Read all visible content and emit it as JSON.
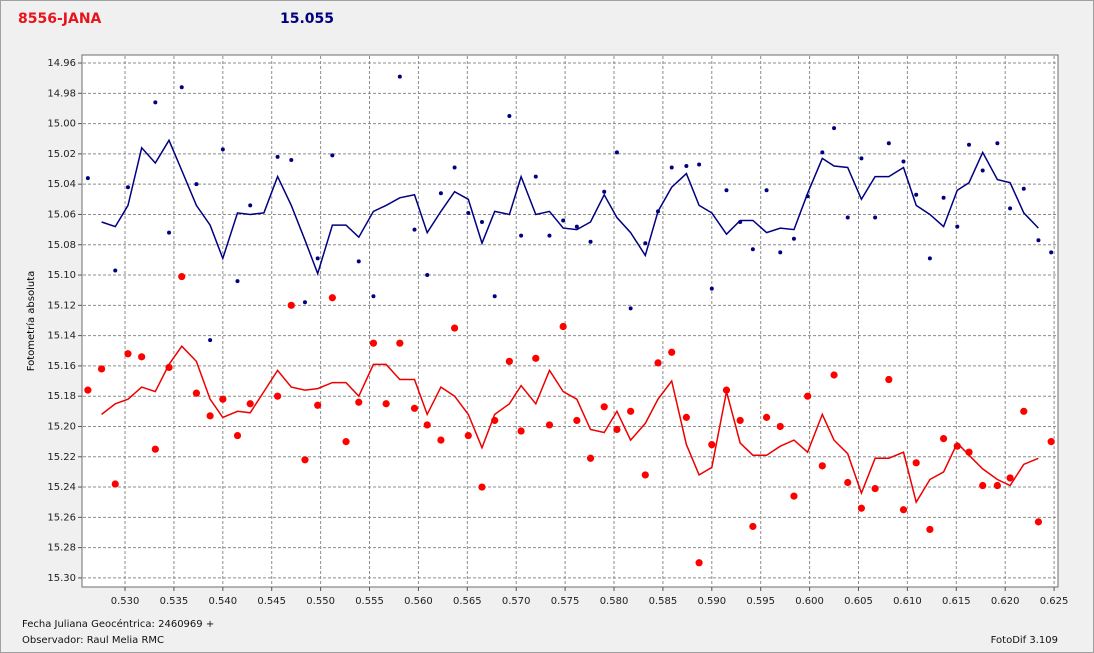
{
  "chart_data": {
    "type": "scatter",
    "title": "8556-JANA",
    "title_color": "#e8141c",
    "subtitle": "15.055",
    "subtitle_color": "#000080",
    "y_label": "Fotometría absoluta",
    "footer": [
      "Fecha Juliana Geocéntrica: 2460969 +",
      "Observador: Raul Melia RMC"
    ],
    "software": "FotoDif 3.109",
    "grid": true,
    "y_reversed": true,
    "xlim": [
      0.5256,
      0.6254
    ],
    "ylim": [
      14.9547,
      15.306
    ],
    "xticks": [
      {
        "value": 0.53,
        "label": "0.530"
      },
      0.535,
      {
        "value": 0.54,
        "label": "0.540"
      },
      0.545,
      {
        "value": 0.55,
        "label": "0.550"
      },
      0.555,
      {
        "value": 0.56,
        "label": "0.560"
      },
      0.565,
      {
        "value": 0.57,
        "label": "0.570"
      },
      0.575,
      {
        "value": 0.58,
        "label": "0.580"
      },
      0.585,
      {
        "value": 0.59,
        "label": "0.590"
      },
      0.595,
      {
        "value": 0.6,
        "label": "0.600"
      },
      0.605,
      {
        "value": 0.61,
        "label": "0.610"
      },
      0.615,
      {
        "value": 0.62,
        "label": "0.620"
      },
      0.625
    ],
    "yticks": [
      14.96,
      14.98,
      {
        "value": 15,
        "label": "15.00"
      },
      15.02,
      15.04,
      15.06,
      15.08,
      {
        "value": 15.1,
        "label": "15.10"
      },
      15.12,
      15.14,
      15.16,
      15.18,
      {
        "value": 15.2,
        "label": "15.20"
      },
      15.22,
      15.24,
      15.26,
      15.28,
      {
        "value": 15.3,
        "label": "15.30"
      }
    ],
    "x": [
      0.5262,
      0.5276,
      0.529,
      0.5303,
      0.5317,
      0.5331,
      0.5345,
      0.5358,
      0.5373,
      0.5387,
      0.54,
      0.5415,
      0.5428,
      0.5442,
      0.5456,
      0.547,
      0.5484,
      0.5497,
      0.5512,
      0.5526,
      0.5539,
      0.5554,
      0.5567,
      0.5581,
      0.5596,
      0.5609,
      0.5623,
      0.5637,
      0.5651,
      0.5665,
      0.5678,
      0.5693,
      0.5705,
      0.572,
      0.5734,
      0.5748,
      0.5762,
      0.5776,
      0.579,
      0.5803,
      0.5817,
      0.5832,
      0.5845,
      0.5859,
      0.5874,
      0.5887,
      0.59,
      0.5915,
      0.5929,
      0.5942,
      0.5956,
      0.597,
      0.5984,
      0.5998,
      0.6013,
      0.6025,
      0.6039,
      0.6053,
      0.6067,
      0.6081,
      0.6096,
      0.6109,
      0.6123,
      0.6137,
      0.6151,
      0.6163,
      0.6177,
      0.6192,
      0.6205,
      0.6219,
      0.6234,
      0.6247
    ],
    "series": [
      {
        "style": "markers",
        "color": "#000080",
        "values": [
          15.036,
          null,
          15.097,
          15.042,
          null,
          14.986,
          15.072,
          14.976,
          15.04,
          15.143,
          15.017,
          15.104,
          15.054,
          null,
          15.022,
          15.024,
          15.118,
          15.089,
          15.021,
          null,
          15.091,
          15.114,
          null,
          14.969,
          15.07,
          15.1,
          15.046,
          15.029,
          15.059,
          15.065,
          15.114,
          14.995,
          15.074,
          15.035,
          15.074,
          15.064,
          15.068,
          15.078,
          15.045,
          15.019,
          15.122,
          15.079,
          15.058,
          15.029,
          15.028,
          15.027,
          15.109,
          15.044,
          15.065,
          15.083,
          15.044,
          15.085,
          15.076,
          15.048,
          15.019,
          15.003,
          15.062,
          15.023,
          15.062,
          15.013,
          15.025,
          15.047,
          15.089,
          15.049,
          15.068,
          15.014,
          15.031,
          15.013,
          15.056,
          15.043,
          15.077,
          15.085
        ]
      },
      {
        "style": "line",
        "color": "#000080",
        "values": [
          null,
          15.065,
          15.068,
          15.054,
          15.016,
          15.026,
          15.011,
          15.031,
          15.054,
          15.067,
          15.089,
          15.059,
          15.06,
          15.059,
          15.035,
          15.054,
          15.077,
          15.099,
          15.067,
          15.067,
          15.075,
          15.058,
          15.054,
          15.049,
          15.047,
          15.072,
          15.058,
          15.045,
          15.05,
          15.079,
          15.058,
          15.06,
          15.035,
          15.06,
          15.058,
          15.069,
          15.07,
          15.065,
          15.047,
          15.062,
          15.072,
          15.087,
          15.058,
          15.042,
          15.033,
          15.054,
          15.059,
          15.073,
          15.064,
          15.064,
          15.072,
          15.069,
          15.07,
          15.046,
          15.023,
          15.028,
          15.029,
          15.05,
          15.035,
          15.035,
          15.029,
          15.054,
          15.06,
          15.068,
          15.044,
          15.039,
          15.019,
          15.037,
          15.039,
          15.059,
          15.069,
          null
        ]
      },
      {
        "style": "markers",
        "color": "#ff0000",
        "values": [
          15.176,
          15.162,
          15.238,
          15.152,
          15.154,
          15.215,
          15.161,
          15.101,
          15.178,
          15.193,
          15.182,
          15.206,
          15.185,
          null,
          15.18,
          15.12,
          15.222,
          15.186,
          15.115,
          15.21,
          15.184,
          15.145,
          15.185,
          15.145,
          15.188,
          15.199,
          15.209,
          15.135,
          15.206,
          15.24,
          15.196,
          15.157,
          15.203,
          15.155,
          15.199,
          15.134,
          15.196,
          15.221,
          15.187,
          15.202,
          15.19,
          15.232,
          15.158,
          15.151,
          15.194,
          15.29,
          15.212,
          15.176,
          15.196,
          15.266,
          15.194,
          15.2,
          15.246,
          15.18,
          15.226,
          15.166,
          15.237,
          15.254,
          15.241,
          15.169,
          15.255,
          15.224,
          15.268,
          15.208,
          15.213,
          15.217,
          15.239,
          15.239,
          15.234,
          15.19,
          15.263,
          15.21
        ]
      },
      {
        "style": "line",
        "color": "#ee0000",
        "values": [
          null,
          15.192,
          15.185,
          15.182,
          15.174,
          15.177,
          15.159,
          15.147,
          15.157,
          15.182,
          15.194,
          15.19,
          15.191,
          15.177,
          15.163,
          15.174,
          15.176,
          15.175,
          15.171,
          15.171,
          15.18,
          15.159,
          15.159,
          15.169,
          15.169,
          15.192,
          15.174,
          15.18,
          15.192,
          15.214,
          15.192,
          15.185,
          15.173,
          15.185,
          15.163,
          15.177,
          15.182,
          15.202,
          15.204,
          15.19,
          15.209,
          15.198,
          15.182,
          15.17,
          15.212,
          15.232,
          15.227,
          15.177,
          15.211,
          15.219,
          15.219,
          15.213,
          15.209,
          15.217,
          15.192,
          15.209,
          15.218,
          15.244,
          15.221,
          15.221,
          15.217,
          15.25,
          15.235,
          15.23,
          15.211,
          15.219,
          15.228,
          15.235,
          15.239,
          15.225,
          15.221,
          null
        ]
      }
    ]
  }
}
